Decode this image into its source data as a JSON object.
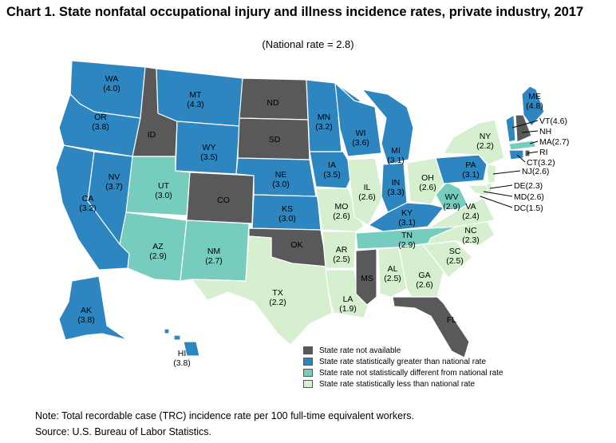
{
  "title": "Chart 1. State nonfatal occupational injury and illness incidence rates, private industry, 2017",
  "subtitle": "(National rate = 2.8)",
  "colors": {
    "na": "#595959",
    "greater": "#2E86C1",
    "same": "#76CDBE",
    "less": "#D6EFCF"
  },
  "legend": [
    {
      "category": "na",
      "label": "State rate not available"
    },
    {
      "category": "greater",
      "label": "State rate statistically greater than national rate"
    },
    {
      "category": "same",
      "label": "State rate not statistically different from national rate"
    },
    {
      "category": "less",
      "label": "State rate statistically less than national rate"
    }
  ],
  "states": [
    {
      "abbr": "WA",
      "rate": "(4.0)",
      "category": "greater"
    },
    {
      "abbr": "OR",
      "rate": "(3.8)",
      "category": "greater"
    },
    {
      "abbr": "CA",
      "rate": "(3.2)",
      "category": "greater"
    },
    {
      "abbr": "NV",
      "rate": "(3.7)",
      "category": "greater"
    },
    {
      "abbr": "ID",
      "rate": "",
      "category": "na"
    },
    {
      "abbr": "MT",
      "rate": "(4.3)",
      "category": "greater"
    },
    {
      "abbr": "WY",
      "rate": "(3.5)",
      "category": "greater"
    },
    {
      "abbr": "UT",
      "rate": "(3.0)",
      "category": "same"
    },
    {
      "abbr": "AZ",
      "rate": "(2.9)",
      "category": "same"
    },
    {
      "abbr": "CO",
      "rate": "",
      "category": "na"
    },
    {
      "abbr": "NM",
      "rate": "(2.7)",
      "category": "same"
    },
    {
      "abbr": "ND",
      "rate": "",
      "category": "na"
    },
    {
      "abbr": "SD",
      "rate": "",
      "category": "na"
    },
    {
      "abbr": "NE",
      "rate": "(3.0)",
      "category": "greater"
    },
    {
      "abbr": "KS",
      "rate": "(3.0)",
      "category": "greater"
    },
    {
      "abbr": "OK",
      "rate": "",
      "category": "na"
    },
    {
      "abbr": "TX",
      "rate": "(2.2)",
      "category": "less"
    },
    {
      "abbr": "MN",
      "rate": "(3.2)",
      "category": "greater"
    },
    {
      "abbr": "IA",
      "rate": "(3.5)",
      "category": "greater"
    },
    {
      "abbr": "MO",
      "rate": "(2.6)",
      "category": "less"
    },
    {
      "abbr": "AR",
      "rate": "(2.5)",
      "category": "less"
    },
    {
      "abbr": "LA",
      "rate": "(1.9)",
      "category": "less"
    },
    {
      "abbr": "WI",
      "rate": "(3.6)",
      "category": "greater"
    },
    {
      "abbr": "IL",
      "rate": "(2.6)",
      "category": "less"
    },
    {
      "abbr": "MI",
      "rate": "(3.1)",
      "category": "greater"
    },
    {
      "abbr": "IN",
      "rate": "(3.3)",
      "category": "greater"
    },
    {
      "abbr": "OH",
      "rate": "(2.6)",
      "category": "less"
    },
    {
      "abbr": "KY",
      "rate": "(3.1)",
      "category": "greater"
    },
    {
      "abbr": "TN",
      "rate": "(2.9)",
      "category": "same"
    },
    {
      "abbr": "MS",
      "rate": "",
      "category": "na"
    },
    {
      "abbr": "AL",
      "rate": "(2.5)",
      "category": "less"
    },
    {
      "abbr": "GA",
      "rate": "(2.6)",
      "category": "less"
    },
    {
      "abbr": "FL",
      "rate": "",
      "category": "na"
    },
    {
      "abbr": "SC",
      "rate": "(2.5)",
      "category": "less"
    },
    {
      "abbr": "NC",
      "rate": "(2.3)",
      "category": "less"
    },
    {
      "abbr": "VA",
      "rate": "(2.4)",
      "category": "less"
    },
    {
      "abbr": "WV",
      "rate": "(2.9)",
      "category": "same"
    },
    {
      "abbr": "PA",
      "rate": "(3.1)",
      "category": "greater"
    },
    {
      "abbr": "NY",
      "rate": "(2.2)",
      "category": "less"
    },
    {
      "abbr": "ME",
      "rate": "(4.8)",
      "category": "greater"
    },
    {
      "abbr": "VT",
      "rate": "(4.6)",
      "category": "greater"
    },
    {
      "abbr": "NH",
      "rate": "",
      "category": "na"
    },
    {
      "abbr": "MA",
      "rate": "(2.7)",
      "category": "same"
    },
    {
      "abbr": "RI",
      "rate": "",
      "category": "na"
    },
    {
      "abbr": "CT",
      "rate": "(3.2)",
      "category": "greater"
    },
    {
      "abbr": "NJ",
      "rate": "(2.6)",
      "category": "less"
    },
    {
      "abbr": "DE",
      "rate": "(2.3)",
      "category": "less"
    },
    {
      "abbr": "MD",
      "rate": "(2.6)",
      "category": "less"
    },
    {
      "abbr": "DC",
      "rate": "(1.5)",
      "category": "less"
    },
    {
      "abbr": "AK",
      "rate": "(3.8)",
      "category": "greater"
    },
    {
      "abbr": "HI",
      "rate": "(3.8)",
      "category": "greater"
    }
  ],
  "note": "Note:  Total recordable case (TRC) incidence rate per 100 full-time equivalent workers.",
  "source": "Source:  U.S. Bureau of Labor Statistics."
}
